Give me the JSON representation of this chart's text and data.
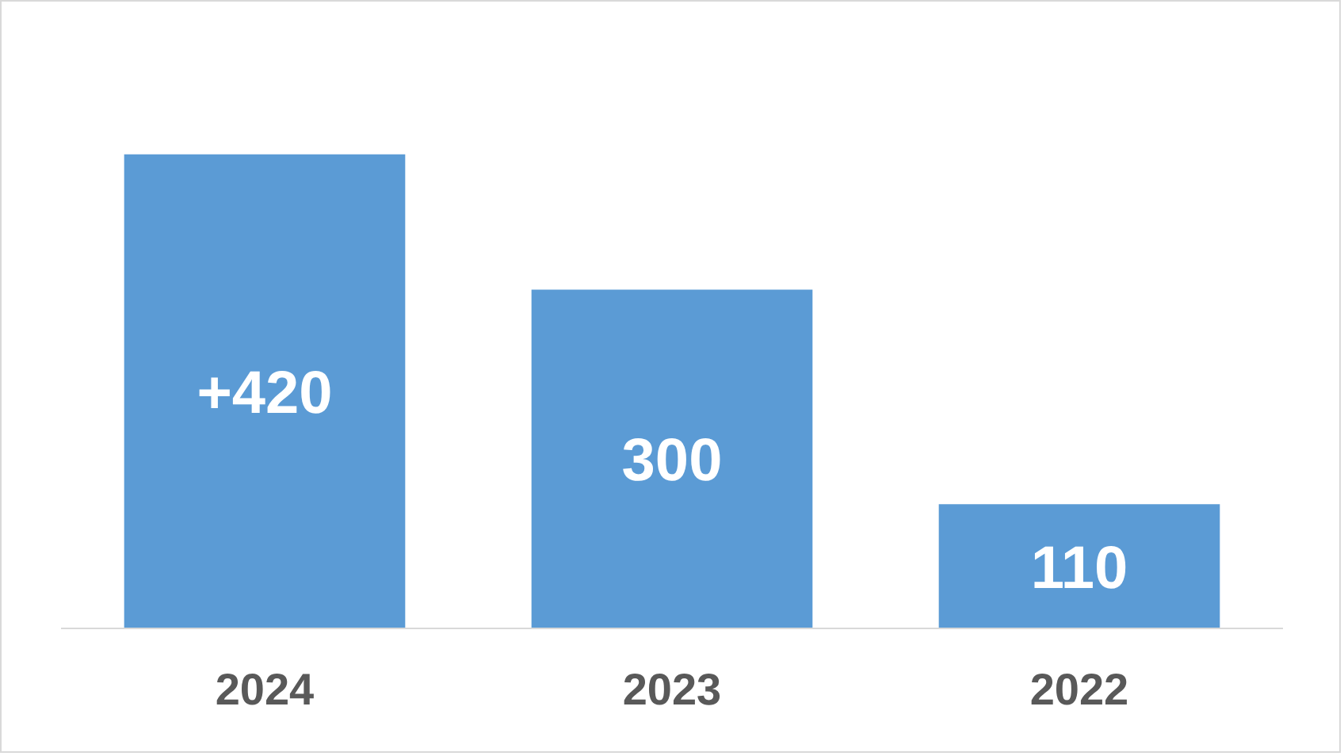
{
  "chart_data": {
    "type": "bar",
    "categories": [
      "2024",
      "2023",
      "2022"
    ],
    "values": [
      420,
      300,
      110
    ],
    "color": "#5b9bd5",
    "value_labels": [
      "+420",
      "300",
      "110"
    ],
    "grid": false
  }
}
